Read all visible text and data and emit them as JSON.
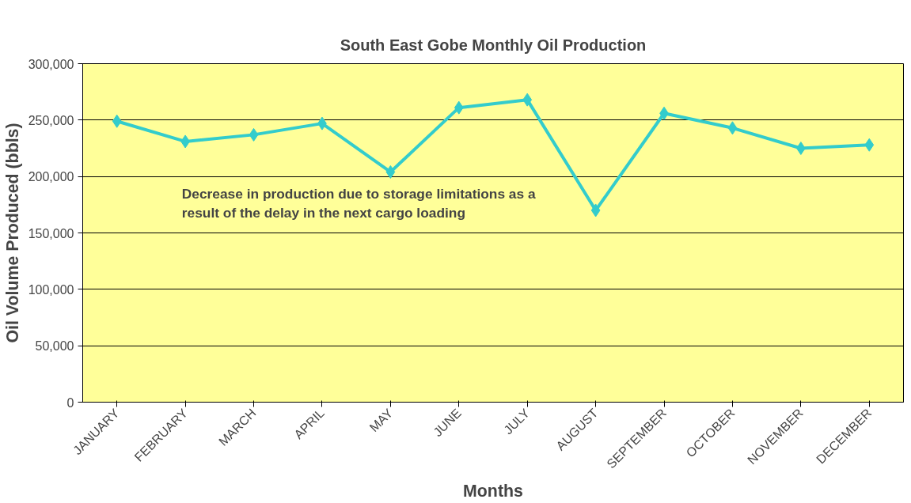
{
  "chart_data": {
    "type": "line",
    "title": "South East Gobe Monthly Oil Production",
    "xlabel": "Months",
    "ylabel": "Oil Volume Produced (bbls)",
    "categories": [
      "JANUARY",
      "FEBRUARY",
      "MARCH",
      "APRIL",
      "MAY",
      "JUNE",
      "JULY",
      "AUGUST",
      "SEPTEMBER",
      "OCTOBER",
      "NOVEMBER",
      "DECEMBER"
    ],
    "series": [
      {
        "color": "#33cccc",
        "values": [
          249000,
          231000,
          237000,
          247000,
          204000,
          261000,
          268000,
          170000,
          256000,
          243000,
          225000,
          228000
        ]
      }
    ],
    "ylim": [
      0,
      300000
    ],
    "yticks": [
      {
        "value": 0,
        "label": "0"
      },
      {
        "value": 50000,
        "label": "50,000"
      },
      {
        "value": 100000,
        "label": "100,000"
      },
      {
        "value": 150000,
        "label": "150,000"
      },
      {
        "value": 200000,
        "label": "200,000"
      },
      {
        "value": 250000,
        "label": "250,000"
      },
      {
        "value": 300000,
        "label": "300,000"
      }
    ],
    "grid": "y",
    "marker": "diamond",
    "line_style": "solid",
    "annotations": [
      "Decrease in production due to storage limitations as a result of the delay in the next cargo loading"
    ]
  }
}
